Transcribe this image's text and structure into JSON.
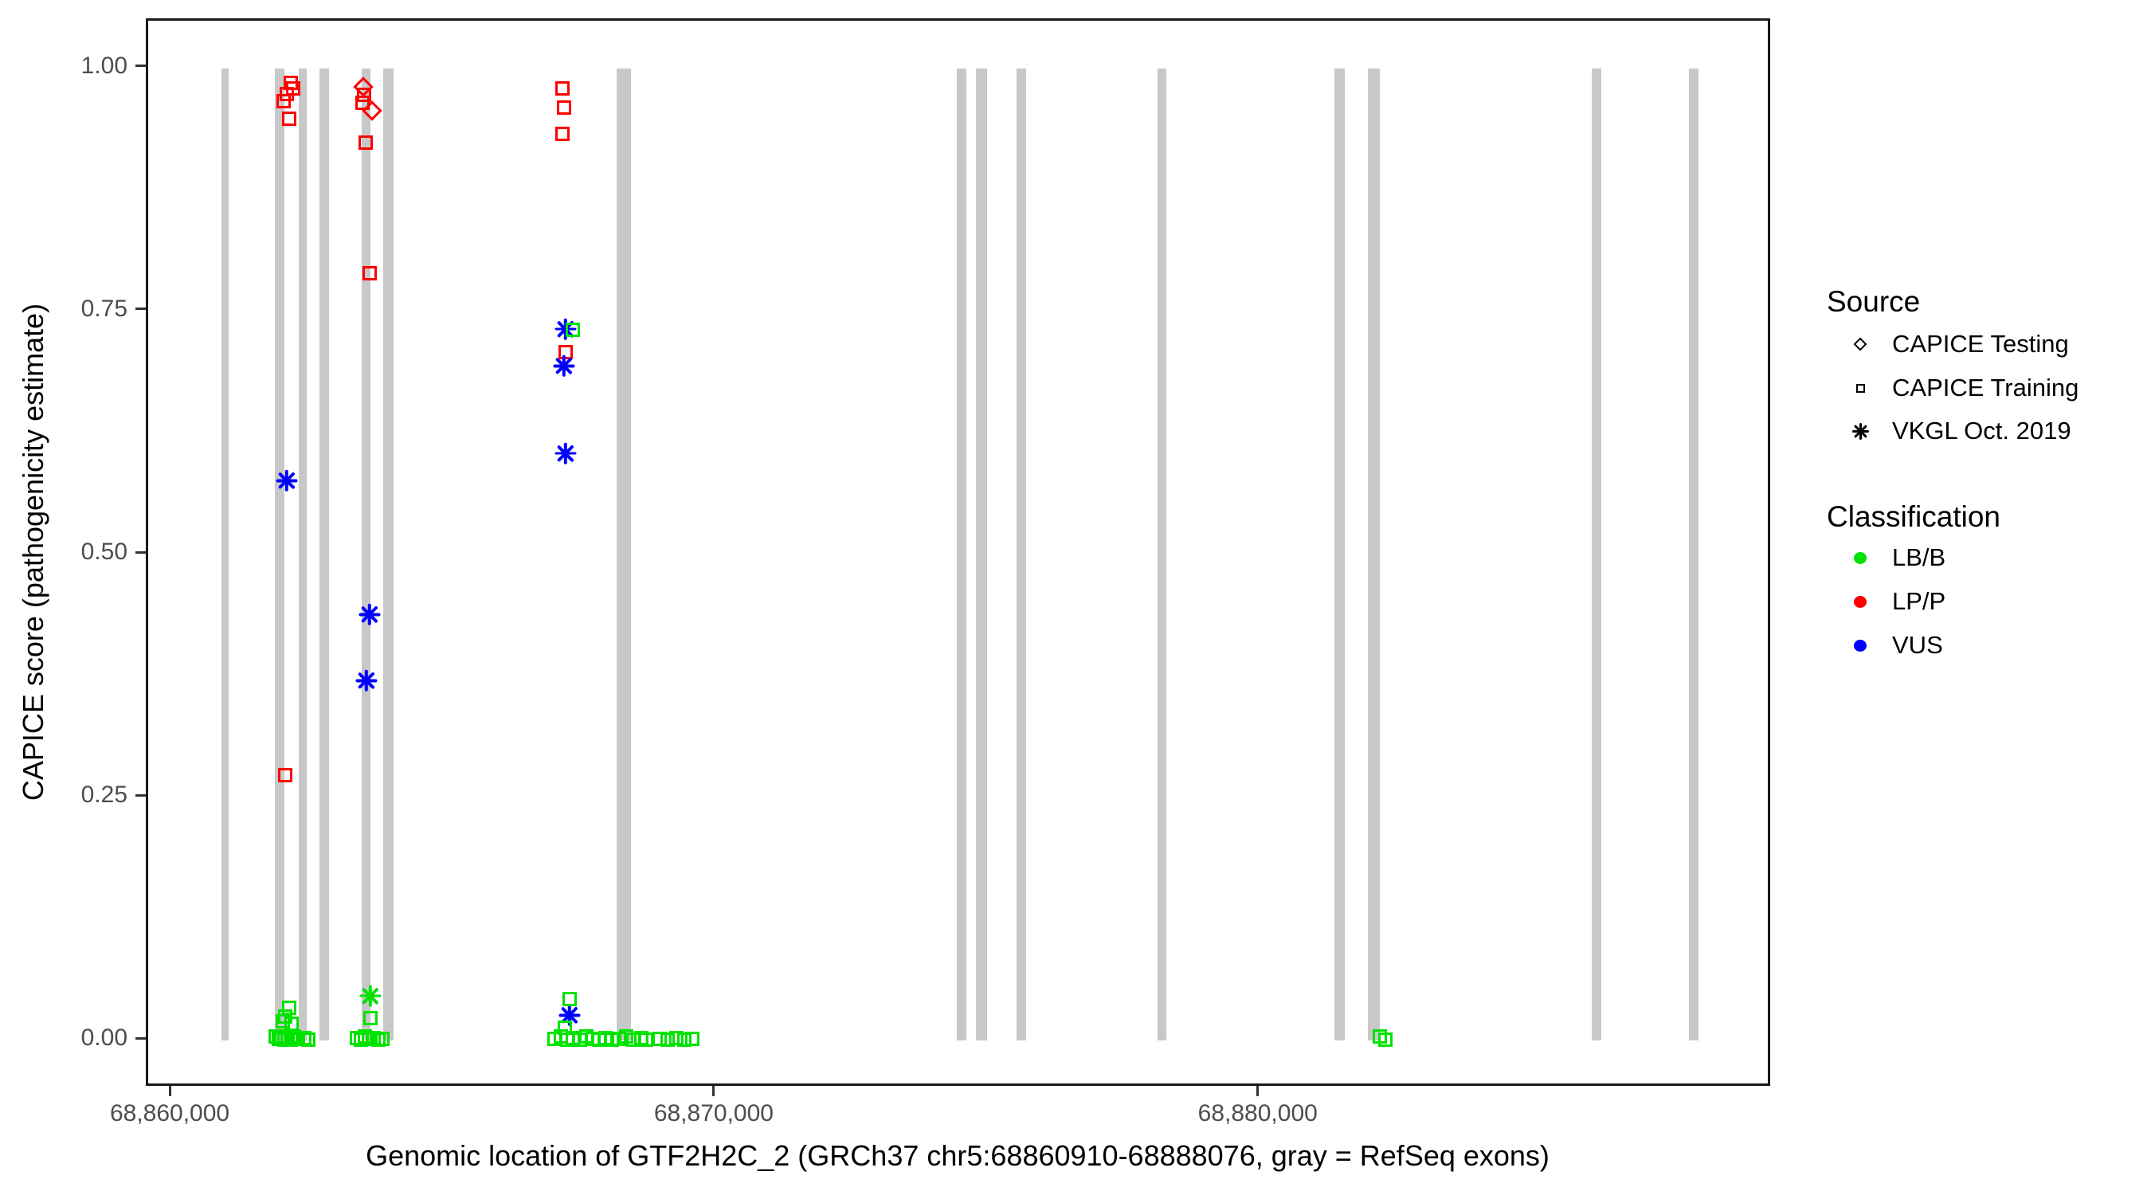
{
  "chart_data": {
    "type": "scatter",
    "xlabel": "Genomic location of GTF2H2C_2 (GRCh37 chr5:68860910-68888076, gray = RefSeq exons)",
    "ylabel": "CAPICE score (pathogenicity estimate)",
    "x_domain": [
      68859560,
      68889420
    ],
    "y_domain": [
      -0.049,
      1.049
    ],
    "x_ticks": [
      {
        "value": 68860000,
        "label": "68,860,000"
      },
      {
        "value": 68870000,
        "label": "68,870,000"
      },
      {
        "value": 68880000,
        "label": "68,880,000"
      }
    ],
    "y_ticks": [
      {
        "value": 0.0,
        "label": "0.00"
      },
      {
        "value": 0.25,
        "label": "0.25"
      },
      {
        "value": 0.5,
        "label": "0.50"
      },
      {
        "value": 0.75,
        "label": "0.75"
      },
      {
        "value": 1.0,
        "label": "1.00"
      }
    ],
    "grid": "off",
    "exon_color": "#c8c8c8",
    "exons": {
      "ymin": 0.0,
      "ymax": 1.0,
      "regions": [
        {
          "center": 68860966,
          "width_bp": 132
        },
        {
          "center": 68861976,
          "width_bp": 176
        },
        {
          "center": 68862401,
          "width_bp": 161
        },
        {
          "center": 68862796,
          "width_bp": 176
        },
        {
          "center": 68863572,
          "width_bp": 161
        },
        {
          "center": 68863982,
          "width_bp": 190
        },
        {
          "center": 68868301,
          "width_bp": 264
        },
        {
          "center": 68874509,
          "width_bp": 176
        },
        {
          "center": 68874875,
          "width_bp": 205
        },
        {
          "center": 68875607,
          "width_bp": 176
        },
        {
          "center": 68878199,
          "width_bp": 161
        },
        {
          "center": 68881464,
          "width_bp": 190
        },
        {
          "center": 68882094,
          "width_bp": 220
        },
        {
          "center": 68886179,
          "width_bp": 176
        },
        {
          "center": 68887965,
          "width_bp": 176
        }
      ]
    },
    "class_colors": {
      "LB/B": "#00e300",
      "LP/P": "#ff0000",
      "VUS": "#0000ff"
    },
    "source_markers": {
      "CAPICE Testing": "diamond",
      "CAPICE Training": "square",
      "VKGL Oct. 2019": "asterisk"
    },
    "points": [
      {
        "pos": 68862180,
        "score": 0.985,
        "source": "CAPICE Training",
        "cls": "LP/P"
      },
      {
        "pos": 68862230,
        "score": 0.979,
        "source": "CAPICE Training",
        "cls": "LP/P"
      },
      {
        "pos": 68862110,
        "score": 0.974,
        "source": "CAPICE Training",
        "cls": "LP/P"
      },
      {
        "pos": 68862050,
        "score": 0.966,
        "source": "CAPICE Training",
        "cls": "LP/P"
      },
      {
        "pos": 68862150,
        "score": 0.948,
        "source": "CAPICE Training",
        "cls": "LP/P"
      },
      {
        "pos": 68862080,
        "score": 0.273,
        "source": "CAPICE Training",
        "cls": "LP/P"
      },
      {
        "pos": 68863515,
        "score": 0.981,
        "source": "CAPICE Testing",
        "cls": "LP/P"
      },
      {
        "pos": 68863675,
        "score": 0.956,
        "source": "CAPICE Testing",
        "cls": "LP/P"
      },
      {
        "pos": 68863535,
        "score": 0.973,
        "source": "CAPICE Training",
        "cls": "LP/P"
      },
      {
        "pos": 68863500,
        "score": 0.965,
        "source": "CAPICE Training",
        "cls": "LP/P"
      },
      {
        "pos": 68863560,
        "score": 0.924,
        "source": "CAPICE Training",
        "cls": "LP/P"
      },
      {
        "pos": 68863630,
        "score": 0.789,
        "source": "CAPICE Training",
        "cls": "LP/P"
      },
      {
        "pos": 68867170,
        "score": 0.979,
        "source": "CAPICE Training",
        "cls": "LP/P"
      },
      {
        "pos": 68867210,
        "score": 0.96,
        "source": "CAPICE Training",
        "cls": "LP/P"
      },
      {
        "pos": 68867180,
        "score": 0.933,
        "source": "CAPICE Training",
        "cls": "LP/P"
      },
      {
        "pos": 68867240,
        "score": 0.708,
        "source": "CAPICE Training",
        "cls": "LP/P"
      },
      {
        "pos": 68862110,
        "score": 0.576,
        "source": "VKGL Oct. 2019",
        "cls": "VUS"
      },
      {
        "pos": 68863630,
        "score": 0.438,
        "source": "VKGL Oct. 2019",
        "cls": "VUS"
      },
      {
        "pos": 68863575,
        "score": 0.37,
        "source": "VKGL Oct. 2019",
        "cls": "VUS"
      },
      {
        "pos": 68867230,
        "score": 0.732,
        "source": "VKGL Oct. 2019",
        "cls": "VUS"
      },
      {
        "pos": 68867200,
        "score": 0.694,
        "source": "VKGL Oct. 2019",
        "cls": "VUS"
      },
      {
        "pos": 68867230,
        "score": 0.604,
        "source": "VKGL Oct. 2019",
        "cls": "VUS"
      },
      {
        "pos": 68867310,
        "score": 0.026,
        "source": "VKGL Oct. 2019",
        "cls": "VUS"
      },
      {
        "pos": 68863645,
        "score": 0.046,
        "source": "VKGL Oct. 2019",
        "cls": "LB/B"
      },
      {
        "pos": 68867365,
        "score": 0.731,
        "source": "CAPICE Training",
        "cls": "LB/B"
      },
      {
        "pos": 68867310,
        "score": 0.043,
        "source": "CAPICE Training",
        "cls": "LB/B"
      },
      {
        "pos": 68862150,
        "score": 0.034,
        "source": "CAPICE Training",
        "cls": "LB/B"
      },
      {
        "pos": 68862080,
        "score": 0.025,
        "source": "CAPICE Training",
        "cls": "LB/B"
      },
      {
        "pos": 68862200,
        "score": 0.017,
        "source": "CAPICE Training",
        "cls": "LB/B"
      },
      {
        "pos": 68862040,
        "score": 0.02,
        "source": "CAPICE Training",
        "cls": "LB/B"
      },
      {
        "pos": 68863640,
        "score": 0.023,
        "source": "CAPICE Training",
        "cls": "LB/B"
      },
      {
        "pos": 68867215,
        "score": 0.013,
        "source": "CAPICE Training",
        "cls": "LB/B"
      },
      {
        "pos": 68861900,
        "score": 0.004,
        "source": "CAPICE Training",
        "cls": "LB/B"
      },
      {
        "pos": 68861955,
        "score": 0.002,
        "source": "CAPICE Training",
        "cls": "LB/B"
      },
      {
        "pos": 68862010,
        "score": 0.004,
        "source": "CAPICE Training",
        "cls": "LB/B"
      },
      {
        "pos": 68862065,
        "score": 0.001,
        "source": "CAPICE Training",
        "cls": "LB/B"
      },
      {
        "pos": 68862120,
        "score": 0.003,
        "source": "CAPICE Training",
        "cls": "LB/B"
      },
      {
        "pos": 68862175,
        "score": 0.001,
        "source": "CAPICE Training",
        "cls": "LB/B"
      },
      {
        "pos": 68862240,
        "score": 0.004,
        "source": "CAPICE Training",
        "cls": "LB/B"
      },
      {
        "pos": 68862320,
        "score": 0.002,
        "source": "CAPICE Training",
        "cls": "LB/B"
      },
      {
        "pos": 68862430,
        "score": 0.003,
        "source": "CAPICE Training",
        "cls": "LB/B"
      },
      {
        "pos": 68862500,
        "score": 0.001,
        "source": "CAPICE Training",
        "cls": "LB/B"
      },
      {
        "pos": 68863400,
        "score": 0.003,
        "source": "CAPICE Training",
        "cls": "LB/B"
      },
      {
        "pos": 68863470,
        "score": 0.001,
        "source": "CAPICE Training",
        "cls": "LB/B"
      },
      {
        "pos": 68863545,
        "score": 0.004,
        "source": "CAPICE Training",
        "cls": "LB/B"
      },
      {
        "pos": 68863620,
        "score": 0.002,
        "source": "CAPICE Training",
        "cls": "LB/B"
      },
      {
        "pos": 68863700,
        "score": 0.003,
        "source": "CAPICE Training",
        "cls": "LB/B"
      },
      {
        "pos": 68863790,
        "score": 0.001,
        "source": "CAPICE Training",
        "cls": "LB/B"
      },
      {
        "pos": 68863860,
        "score": 0.002,
        "source": "CAPICE Training",
        "cls": "LB/B"
      },
      {
        "pos": 68867030,
        "score": 0.002,
        "source": "CAPICE Training",
        "cls": "LB/B"
      },
      {
        "pos": 68867150,
        "score": 0.004,
        "source": "CAPICE Training",
        "cls": "LB/B"
      },
      {
        "pos": 68867260,
        "score": 0.001,
        "source": "CAPICE Training",
        "cls": "LB/B"
      },
      {
        "pos": 68867370,
        "score": 0.003,
        "source": "CAPICE Training",
        "cls": "LB/B"
      },
      {
        "pos": 68867490,
        "score": 0.001,
        "source": "CAPICE Training",
        "cls": "LB/B"
      },
      {
        "pos": 68867610,
        "score": 0.004,
        "source": "CAPICE Training",
        "cls": "LB/B"
      },
      {
        "pos": 68867730,
        "score": 0.002,
        "source": "CAPICE Training",
        "cls": "LB/B"
      },
      {
        "pos": 68867850,
        "score": 0.001,
        "source": "CAPICE Training",
        "cls": "LB/B"
      },
      {
        "pos": 68867970,
        "score": 0.003,
        "source": "CAPICE Training",
        "cls": "LB/B"
      },
      {
        "pos": 68868090,
        "score": 0.001,
        "source": "CAPICE Training",
        "cls": "LB/B"
      },
      {
        "pos": 68868210,
        "score": 0.002,
        "source": "CAPICE Training",
        "cls": "LB/B"
      },
      {
        "pos": 68868340,
        "score": 0.004,
        "source": "CAPICE Training",
        "cls": "LB/B"
      },
      {
        "pos": 68868480,
        "score": 0.001,
        "source": "CAPICE Training",
        "cls": "LB/B"
      },
      {
        "pos": 68868620,
        "score": 0.003,
        "source": "CAPICE Training",
        "cls": "LB/B"
      },
      {
        "pos": 68868710,
        "score": 0.001,
        "source": "CAPICE Training",
        "cls": "LB/B"
      },
      {
        "pos": 68868960,
        "score": 0.002,
        "source": "CAPICE Training",
        "cls": "LB/B"
      },
      {
        "pos": 68869110,
        "score": 0.001,
        "source": "CAPICE Training",
        "cls": "LB/B"
      },
      {
        "pos": 68869270,
        "score": 0.003,
        "source": "CAPICE Training",
        "cls": "LB/B"
      },
      {
        "pos": 68869420,
        "score": 0.001,
        "source": "CAPICE Training",
        "cls": "LB/B"
      },
      {
        "pos": 68869560,
        "score": 0.002,
        "source": "CAPICE Training",
        "cls": "LB/B"
      },
      {
        "pos": 68882200,
        "score": 0.004,
        "source": "CAPICE Training",
        "cls": "LB/B"
      },
      {
        "pos": 68882310,
        "score": 0.001,
        "source": "CAPICE Training",
        "cls": "LB/B"
      }
    ],
    "legend": {
      "source": {
        "title": "Source",
        "items": [
          {
            "label": "CAPICE Testing",
            "marker": "diamond"
          },
          {
            "label": "CAPICE Training",
            "marker": "square"
          },
          {
            "label": "VKGL Oct. 2019",
            "marker": "asterisk"
          }
        ]
      },
      "classification": {
        "title": "Classification",
        "items": [
          {
            "label": "LB/B",
            "color": "#00e300"
          },
          {
            "label": "LP/P",
            "color": "#ff0000"
          },
          {
            "label": "VUS",
            "color": "#0000ff"
          }
        ]
      }
    }
  }
}
